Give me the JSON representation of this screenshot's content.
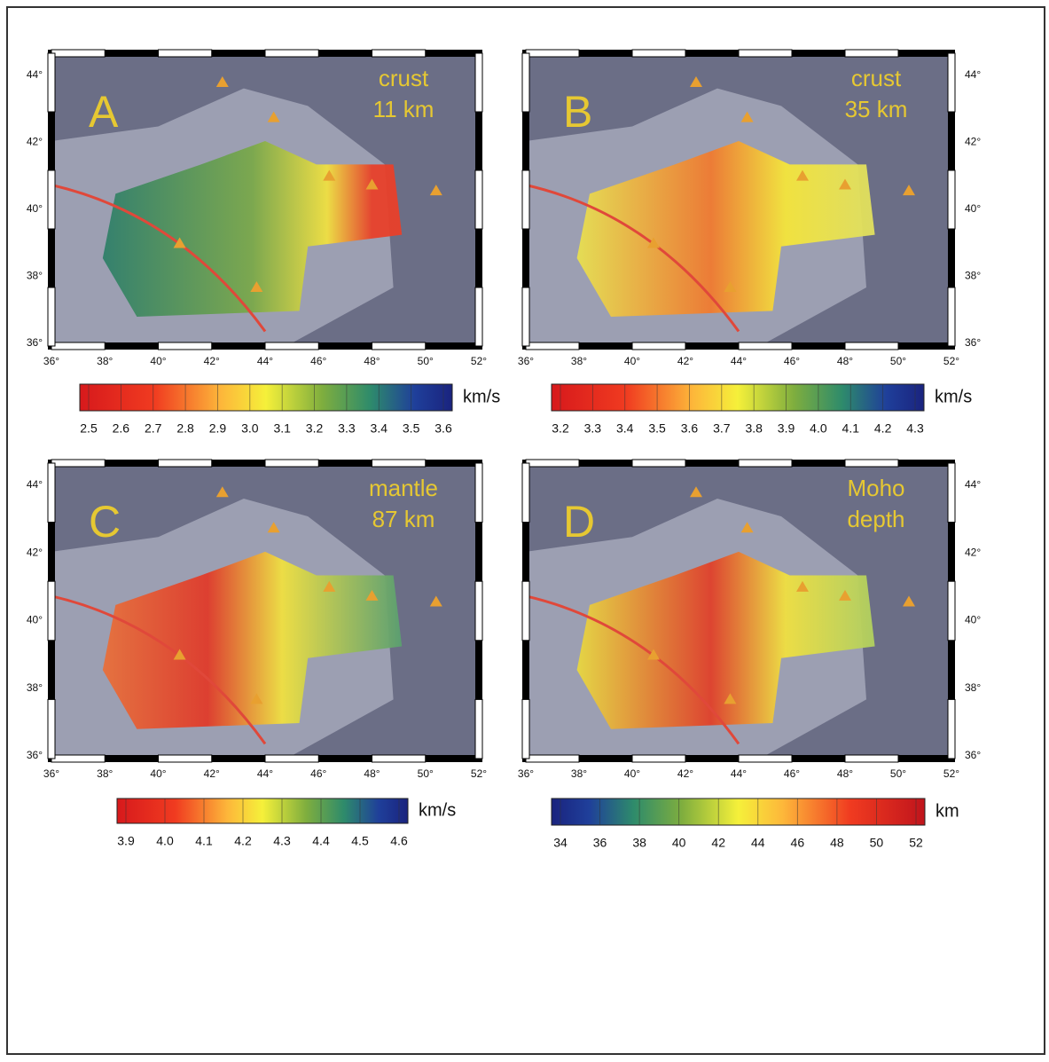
{
  "panels": [
    {
      "letter": "A",
      "label": [
        "crust",
        "11 km"
      ],
      "unit": "km/s",
      "colorbar_ticks": [
        "2.5",
        "2.6",
        "2.7",
        "2.8",
        "2.9",
        "3.0",
        "3.1",
        "3.2",
        "3.3",
        "3.4",
        "3.5",
        "3.6"
      ]
    },
    {
      "letter": "B",
      "label": [
        "crust",
        "35 km"
      ],
      "unit": "km/s",
      "colorbar_ticks": [
        "3.2",
        "3.3",
        "3.4",
        "3.5",
        "3.6",
        "3.7",
        "3.8",
        "3.9",
        "4.0",
        "4.1",
        "4.2",
        "4.3"
      ]
    },
    {
      "letter": "C",
      "label": [
        "mantle",
        "87 km"
      ],
      "unit": "km/s",
      "colorbar_ticks": [
        "3.9",
        "4.0",
        "4.1",
        "4.2",
        "4.3",
        "4.4",
        "4.5",
        "4.6"
      ]
    },
    {
      "letter": "D",
      "label": [
        "Moho",
        "depth"
      ],
      "unit": "km",
      "colorbar_ticks": [
        "34",
        "36",
        "38",
        "40",
        "42",
        "44",
        "46",
        "48",
        "50",
        "52"
      ]
    }
  ],
  "lon_ticks": [
    "36°",
    "38°",
    "40°",
    "42°",
    "44°",
    "46°",
    "48°",
    "50°",
    "52°"
  ],
  "lat_ticks": [
    "44°",
    "42°",
    "40°",
    "38°",
    "36°"
  ]
}
